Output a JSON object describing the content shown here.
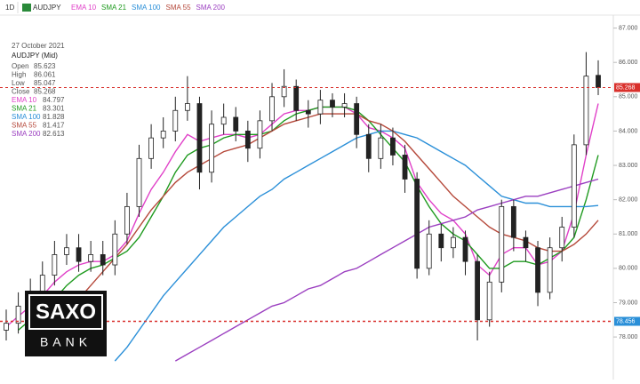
{
  "chart_data": {
    "type": "candlestick",
    "interval": "1D",
    "symbol": "AUDJPY",
    "ylim": [
      77.2,
      87.3
    ],
    "yticks": [
      {
        "value": 78,
        "label": "78.000"
      },
      {
        "value": 79,
        "label": "79.000"
      },
      {
        "value": 80,
        "label": "80.000"
      },
      {
        "value": 81,
        "label": "81.000"
      },
      {
        "value": 82,
        "label": "82.000"
      },
      {
        "value": 83,
        "label": "83.000"
      },
      {
        "value": 84,
        "label": "84.000"
      },
      {
        "value": 85,
        "label": "85.000"
      },
      {
        "value": 86,
        "label": "86.000"
      },
      {
        "value": 87,
        "label": "87.000"
      }
    ],
    "grid": false,
    "candle_up_color": "#ffffff",
    "candle_down_color": "#222222",
    "open": [
      78.2,
      78.4,
      78.9,
      79.3,
      79.8,
      80.4,
      80.6,
      80.2,
      80.4,
      80.1,
      81.0,
      81.8,
      83.2,
      83.8,
      84.0,
      84.6,
      84.8,
      82.8,
      84.2,
      84.4,
      84.0,
      83.5,
      84.3,
      85.0,
      85.3,
      84.6,
      84.5,
      84.9,
      84.7,
      84.8,
      83.9,
      83.2,
      83.8,
      83.3,
      82.6,
      80.0,
      81.0,
      80.6,
      80.9,
      80.2,
      78.5,
      79.6,
      81.8,
      80.9,
      80.6,
      79.3,
      80.6,
      81.2,
      83.6,
      85.623
    ],
    "high": [
      78.8,
      79.3,
      79.7,
      80.2,
      80.8,
      81.0,
      81.0,
      80.8,
      80.8,
      81.4,
      82.2,
      83.6,
      84.2,
      84.4,
      85.0,
      85.6,
      85.0,
      84.6,
      84.8,
      84.7,
      84.3,
      84.6,
      85.4,
      85.8,
      85.5,
      84.9,
      85.2,
      85.1,
      85.1,
      85.0,
      84.2,
      84.2,
      84.1,
      83.6,
      82.8,
      81.4,
      81.3,
      81.2,
      81.1,
      80.4,
      79.9,
      82.0,
      82.0,
      81.1,
      80.8,
      80.9,
      81.5,
      83.9,
      86.3,
      86.061
    ],
    "low": [
      77.9,
      78.1,
      78.6,
      79.0,
      79.5,
      80.1,
      79.9,
      79.9,
      79.8,
      79.8,
      80.7,
      81.5,
      82.9,
      83.5,
      83.7,
      84.3,
      82.3,
      82.5,
      83.9,
      83.7,
      83.1,
      83.2,
      84.0,
      84.7,
      84.3,
      84.1,
      84.2,
      84.4,
      84.4,
      83.5,
      82.8,
      82.9,
      83.0,
      82.2,
      79.7,
      79.8,
      80.2,
      80.3,
      79.8,
      77.9,
      78.3,
      79.3,
      80.5,
      80.2,
      78.9,
      79.1,
      80.2,
      80.9,
      83.3,
      85.047
    ],
    "close": [
      78.4,
      78.9,
      79.3,
      79.8,
      80.4,
      80.6,
      80.2,
      80.4,
      80.1,
      81.0,
      81.8,
      83.2,
      83.8,
      84.0,
      84.6,
      84.8,
      82.8,
      84.2,
      84.4,
      84.0,
      83.5,
      84.3,
      85.0,
      85.3,
      84.6,
      84.5,
      84.9,
      84.7,
      84.8,
      83.9,
      83.2,
      83.8,
      83.3,
      82.6,
      80.0,
      81.0,
      80.6,
      80.9,
      80.2,
      78.5,
      79.6,
      81.8,
      80.9,
      80.6,
      79.3,
      80.6,
      81.2,
      83.6,
      85.6,
      85.268
    ],
    "series": [
      {
        "name": "EMA 10",
        "color": "#e040c8",
        "current": 84.797,
        "values": [
          78.3,
          78.6,
          78.9,
          79.2,
          79.6,
          79.9,
          80.1,
          80.2,
          80.2,
          80.4,
          80.8,
          81.6,
          82.3,
          82.8,
          83.4,
          83.9,
          83.7,
          83.8,
          83.9,
          83.9,
          83.8,
          83.9,
          84.2,
          84.5,
          84.6,
          84.6,
          84.7,
          84.7,
          84.7,
          84.5,
          84.1,
          84.0,
          83.8,
          83.5,
          82.5,
          82.0,
          81.6,
          81.4,
          81.0,
          80.1,
          79.8,
          80.4,
          80.6,
          80.6,
          80.1,
          80.2,
          80.5,
          81.6,
          83.3,
          84.8
        ]
      },
      {
        "name": "SMA 21",
        "color": "#1e9a1e",
        "current": 83.301,
        "values": [
          null,
          78.2,
          78.5,
          78.8,
          79.1,
          79.5,
          79.8,
          80.0,
          80.1,
          80.3,
          80.5,
          80.9,
          81.5,
          82.1,
          82.8,
          83.3,
          83.5,
          83.6,
          83.8,
          83.9,
          83.9,
          83.9,
          84.0,
          84.3,
          84.5,
          84.6,
          84.7,
          84.7,
          84.7,
          84.6,
          84.3,
          83.9,
          83.5,
          83.1,
          82.4,
          81.8,
          81.3,
          81.0,
          80.8,
          80.4,
          80.0,
          80.0,
          80.2,
          80.2,
          80.1,
          80.3,
          80.5,
          80.9,
          82.0,
          83.3
        ]
      },
      {
        "name": "SMA 100",
        "color": "#2a8fd8",
        "current": 81.828,
        "values": [
          null,
          null,
          null,
          null,
          null,
          null,
          null,
          null,
          null,
          77.3,
          77.7,
          78.2,
          78.7,
          79.2,
          79.6,
          80.0,
          80.4,
          80.8,
          81.2,
          81.5,
          81.8,
          82.1,
          82.3,
          82.6,
          82.8,
          83.0,
          83.2,
          83.4,
          83.6,
          83.8,
          83.9,
          84.0,
          84.0,
          83.9,
          83.8,
          83.6,
          83.4,
          83.2,
          83.0,
          82.7,
          82.4,
          82.1,
          82.0,
          81.9,
          81.9,
          81.8,
          81.8,
          81.8,
          81.8,
          81.83
        ]
      },
      {
        "name": "SMA 55",
        "color": "#b5483a",
        "current": 81.417,
        "values": [
          null,
          null,
          null,
          77.5,
          78.0,
          78.6,
          79.1,
          79.5,
          79.9,
          80.3,
          80.7,
          81.2,
          81.7,
          82.1,
          82.5,
          82.8,
          83.0,
          83.2,
          83.4,
          83.5,
          83.6,
          83.8,
          84.0,
          84.2,
          84.3,
          84.4,
          84.5,
          84.5,
          84.5,
          84.5,
          84.3,
          84.2,
          84.0,
          83.7,
          83.3,
          82.9,
          82.5,
          82.1,
          81.8,
          81.5,
          81.2,
          81.0,
          80.9,
          80.8,
          80.6,
          80.5,
          80.5,
          80.7,
          81.0,
          81.4
        ]
      },
      {
        "name": "SMA 200",
        "color": "#9b3fc0",
        "current": 82.613,
        "values": [
          null,
          null,
          null,
          null,
          null,
          null,
          null,
          null,
          null,
          null,
          null,
          null,
          null,
          null,
          77.3,
          77.5,
          77.7,
          77.9,
          78.1,
          78.3,
          78.5,
          78.7,
          78.9,
          79.0,
          79.2,
          79.4,
          79.5,
          79.7,
          79.9,
          80.0,
          80.2,
          80.4,
          80.6,
          80.8,
          81.0,
          81.2,
          81.3,
          81.4,
          81.5,
          81.7,
          81.8,
          81.9,
          82.0,
          82.1,
          82.1,
          82.2,
          82.3,
          82.4,
          82.5,
          82.6
        ]
      }
    ],
    "price_lines": [
      {
        "value": 85.268,
        "color": "#d9302c"
      },
      {
        "value": 78.456,
        "color": "#d9302c",
        "label_color": "#2a8fd8"
      }
    ],
    "info": {
      "date": "27 October 2021",
      "symbol": "AUDJPY (Mid)",
      "rows": [
        {
          "label": "Open",
          "value": 85.623
        },
        {
          "label": "High",
          "value": 86.061
        },
        {
          "label": "Low",
          "value": 85.047
        },
        {
          "label": "Close",
          "value": 85.268
        }
      ]
    },
    "logo": {
      "top": "SAXO",
      "bottom": "BANK"
    }
  }
}
